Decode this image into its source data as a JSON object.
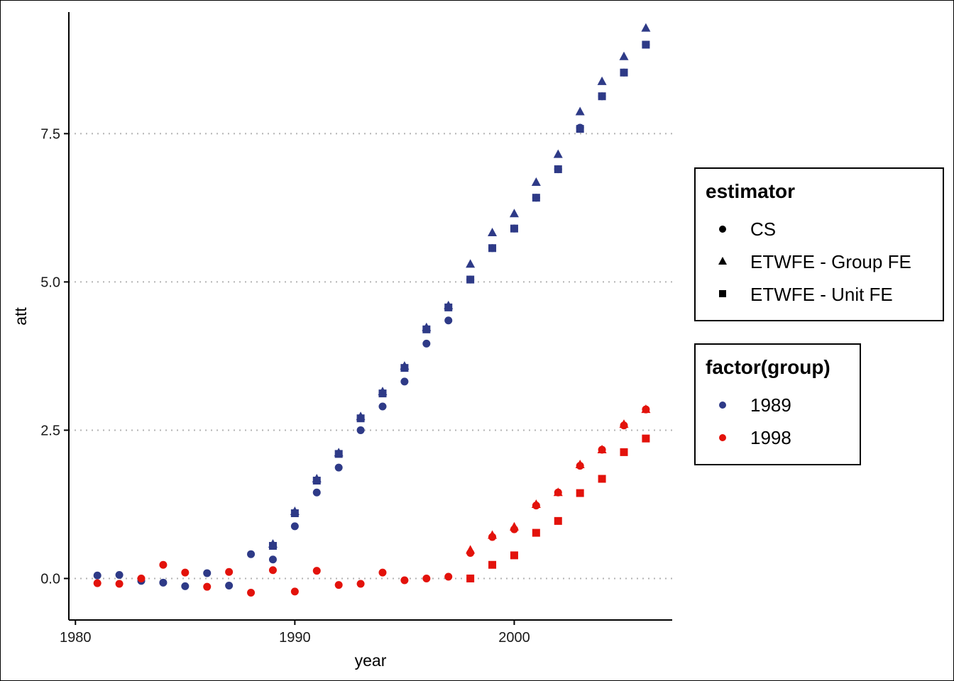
{
  "chart_data": {
    "type": "scatter",
    "xlabel": "year",
    "ylabel": "att",
    "xlim": [
      1979.7,
      2007.2
    ],
    "ylim": [
      -0.7,
      9.55
    ],
    "x_ticks": [
      1980,
      1990,
      2000
    ],
    "x_tick_labels": [
      "1980",
      "1990",
      "2000"
    ],
    "y_ticks": [
      0,
      2.5,
      5,
      7.5
    ],
    "y_tick_labels": [
      "0.0",
      "2.5",
      "5.0",
      "7.5"
    ],
    "grid": "horizontal dotted major",
    "legend_position": "right",
    "legends": [
      {
        "title": "estimator",
        "items": [
          {
            "label": "CS",
            "shape": "circle"
          },
          {
            "label": "ETWFE - Group FE",
            "shape": "triangle"
          },
          {
            "label": "ETWFE - Unit FE",
            "shape": "square"
          }
        ]
      },
      {
        "title": "factor(group)",
        "items": [
          {
            "label": "1989",
            "color": "#2e3a87"
          },
          {
            "label": "1998",
            "color": "#e3120b"
          }
        ]
      }
    ],
    "series": [
      {
        "group": "1989",
        "estimator": "CS",
        "color": "#2e3a87",
        "shape": "circle",
        "x": [
          1981,
          1982,
          1983,
          1984,
          1985,
          1986,
          1987,
          1988,
          1989,
          1990,
          1991,
          1992,
          1993,
          1994,
          1995,
          1996,
          1997,
          1998,
          1999,
          2000,
          2001,
          2002,
          2003,
          2004,
          2005,
          2006
        ],
        "y": [
          0.05,
          0.06,
          -0.04,
          -0.07,
          -0.13,
          0.09,
          -0.12,
          0.41,
          0.32,
          0.88,
          1.45,
          1.87,
          2.5,
          2.9,
          3.32,
          3.96,
          4.35,
          5.04,
          5.57,
          5.9,
          6.42,
          6.9,
          7.6,
          8.13,
          8.53,
          9.0
        ]
      },
      {
        "group": "1989",
        "estimator": "ETWFE - Group FE",
        "color": "#2e3a87",
        "shape": "triangle",
        "x": [
          1989,
          1990,
          1991,
          1992,
          1993,
          1994,
          1995,
          1996,
          1997,
          1998,
          1999,
          2000,
          2001,
          2002,
          2003,
          2004,
          2005,
          2006
        ],
        "y": [
          0.58,
          1.13,
          1.68,
          2.12,
          2.73,
          3.15,
          3.58,
          4.23,
          4.6,
          5.3,
          5.83,
          6.15,
          6.68,
          7.15,
          7.87,
          8.38,
          8.8,
          9.28
        ]
      },
      {
        "group": "1989",
        "estimator": "ETWFE - Unit FE",
        "color": "#2e3a87",
        "shape": "square",
        "x": [
          1989,
          1990,
          1991,
          1992,
          1993,
          1994,
          1995,
          1996,
          1997,
          1998,
          1999,
          2000,
          2001,
          2002,
          2003,
          2004,
          2005,
          2006
        ],
        "y": [
          0.55,
          1.1,
          1.65,
          2.1,
          2.7,
          3.12,
          3.55,
          4.2,
          4.57,
          5.04,
          5.57,
          5.9,
          6.42,
          6.9,
          7.58,
          8.13,
          8.53,
          9.0
        ]
      },
      {
        "group": "1998",
        "estimator": "CS",
        "color": "#e3120b",
        "shape": "circle",
        "x": [
          1981,
          1982,
          1983,
          1984,
          1985,
          1986,
          1987,
          1988,
          1989,
          1990,
          1991,
          1992,
          1993,
          1994,
          1995,
          1996,
          1997,
          1998,
          1999,
          2000,
          2001,
          2002,
          2003,
          2004,
          2005,
          2006
        ],
        "y": [
          -0.08,
          -0.09,
          0.0,
          0.23,
          0.1,
          -0.14,
          0.11,
          -0.24,
          0.14,
          -0.22,
          0.13,
          -0.11,
          -0.09,
          0.1,
          -0.03,
          0.0,
          0.03,
          0.43,
          0.7,
          0.83,
          1.23,
          1.45,
          1.9,
          2.17,
          2.58,
          2.85
        ]
      },
      {
        "group": "1998",
        "estimator": "ETWFE - Group FE",
        "color": "#e3120b",
        "shape": "triangle",
        "x": [
          1998,
          1999,
          2000,
          2001,
          2002,
          2003,
          2004,
          2005,
          2006
        ],
        "y": [
          0.48,
          0.73,
          0.87,
          1.25,
          1.45,
          1.92,
          2.17,
          2.6,
          2.85
        ]
      },
      {
        "group": "1998",
        "estimator": "ETWFE - Unit FE",
        "color": "#e3120b",
        "shape": "square",
        "x": [
          1998,
          1999,
          2000,
          2001,
          2002,
          2003,
          2004,
          2005,
          2006
        ],
        "y": [
          0.0,
          0.23,
          0.39,
          0.77,
          0.97,
          1.44,
          1.68,
          2.13,
          2.36
        ]
      }
    ]
  }
}
